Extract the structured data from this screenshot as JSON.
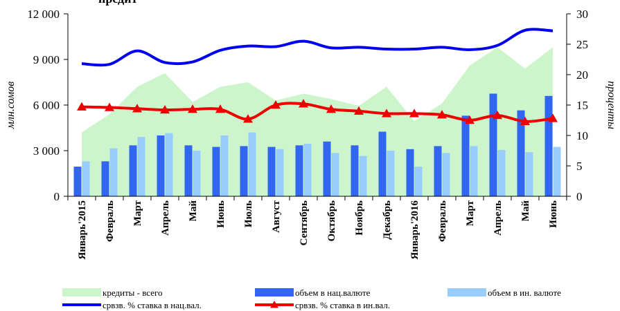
{
  "chart_data": {
    "type": "bar",
    "title": "предит",
    "xlabel": "",
    "ylabel": "млн.сомов",
    "y2label": "проценты",
    "ylim": [
      0,
      12000
    ],
    "y2lim": [
      0,
      30
    ],
    "yticks": [
      "0",
      "3 000",
      "6 000",
      "9 000",
      "12 000"
    ],
    "y2ticks": [
      "0",
      "5",
      "10",
      "15",
      "20",
      "25",
      "30"
    ],
    "categories": [
      "Январь'2015",
      "Февраль",
      "Март",
      "Апрель",
      "Май",
      "Июнь",
      "Июль",
      "Август",
      "Сентябрь",
      "Октябрь",
      "Ноябрь",
      "Декабрь",
      "Январь'2016",
      "Февраль",
      "Март",
      "Апрель",
      "Май",
      "Июнь"
    ],
    "series": [
      {
        "name": "кредиты - всего",
        "type": "area",
        "axis": "left",
        "color": "#ccf5cc",
        "values": [
          4200,
          5400,
          7200,
          8100,
          6200,
          7200,
          7500,
          6300,
          6750,
          6400,
          5950,
          7200,
          4950,
          6100,
          8600,
          9800,
          8400,
          9800
        ]
      },
      {
        "name": "объем в нац.валюте",
        "type": "bar",
        "axis": "left",
        "color": "#3366ee",
        "values": [
          1950,
          2300,
          3350,
          4000,
          3350,
          3250,
          3300,
          3250,
          3350,
          3600,
          3350,
          4250,
          3100,
          3300,
          5300,
          6750,
          5650,
          6600
        ]
      },
      {
        "name": "объем в ин. валюте",
        "type": "bar",
        "axis": "left",
        "color": "#99ccff",
        "values": [
          2300,
          3150,
          3900,
          4150,
          3000,
          4000,
          4200,
          3100,
          3450,
          2850,
          2650,
          3000,
          1950,
          2850,
          3300,
          3050,
          2900,
          3250
        ]
      },
      {
        "name": "срвзв. % ставка в нац.вал.",
        "type": "line",
        "axis": "right",
        "color": "#0000ee",
        "values": [
          21.8,
          21.7,
          23.9,
          22.0,
          22.1,
          24.0,
          24.7,
          24.6,
          25.5,
          24.4,
          24.5,
          24.2,
          24.2,
          24.5,
          24.1,
          24.8,
          27.3,
          27.2
        ]
      },
      {
        "name": "срвзв. % ставка в ин.вал.",
        "type": "line",
        "axis": "right",
        "color": "#ee0000",
        "values": [
          14.7,
          14.6,
          14.4,
          14.2,
          14.3,
          14.3,
          12.7,
          15.0,
          15.2,
          14.3,
          14.0,
          13.6,
          13.6,
          13.4,
          12.5,
          13.3,
          12.3,
          12.8
        ]
      }
    ],
    "legend_position": "bottom",
    "grid": false
  }
}
